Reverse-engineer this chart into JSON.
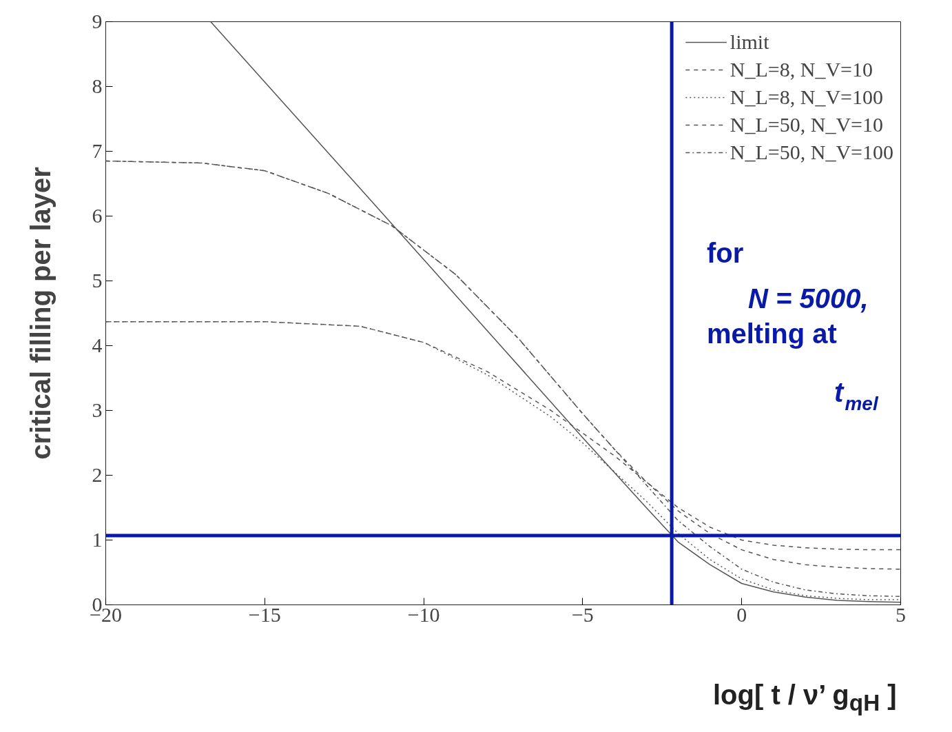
{
  "chart_data": {
    "type": "line",
    "xlabel": "log[ t / ν’ g$_{qH}$ ]",
    "ylabel": "critical filling per layer",
    "xlim": [
      -20,
      5
    ],
    "ylim": [
      0,
      9
    ],
    "xticks": [
      -20,
      -15,
      -10,
      -5,
      0,
      5
    ],
    "yticks": [
      0,
      1,
      2,
      3,
      4,
      5,
      6,
      7,
      8,
      9
    ],
    "grid": false,
    "legend": "top right",
    "series": [
      {
        "name": "limit",
        "color": "#555555",
        "line_style": "solid",
        "x": [
          -16.7,
          -15,
          -10,
          -5,
          -3,
          -2,
          -1,
          0,
          1,
          2,
          3,
          4,
          5
        ],
        "values": [
          9,
          8.07,
          5.33,
          2.58,
          1.5,
          0.97,
          0.62,
          0.33,
          0.2,
          0.12,
          0.07,
          0.05,
          0.04
        ]
      },
      {
        "name": "N_L=8, N_V=10",
        "color": "#555555",
        "line_style": "dashed",
        "x": [
          -20,
          -15,
          -12,
          -10,
          -8,
          -6,
          -5,
          -4,
          -3,
          -2,
          -1,
          0,
          1,
          2,
          3,
          4,
          5
        ],
        "values": [
          4.37,
          4.37,
          4.3,
          4.05,
          3.6,
          3.0,
          2.65,
          2.3,
          1.9,
          1.5,
          1.2,
          1.0,
          0.92,
          0.88,
          0.86,
          0.85,
          0.85
        ]
      },
      {
        "name": "N_L=8, N_V=100",
        "color": "#555555",
        "line_style": "dotted",
        "x": [
          -20,
          -15,
          -12,
          -10,
          -8,
          -6,
          -5,
          -4,
          -3,
          -2,
          -1,
          0,
          1,
          2,
          3,
          4,
          5
        ],
        "values": [
          4.37,
          4.37,
          4.3,
          4.05,
          3.55,
          2.9,
          2.5,
          2.05,
          1.6,
          1.1,
          0.7,
          0.4,
          0.23,
          0.14,
          0.1,
          0.08,
          0.08
        ]
      },
      {
        "name": "N_L=50, N_V=10",
        "color": "#555555",
        "line_style": "dashed",
        "x": [
          -20,
          -17,
          -15,
          -13,
          -11,
          -9,
          -7,
          -5,
          -4,
          -3,
          -2,
          -1,
          0,
          1,
          2,
          3,
          4,
          5
        ],
        "values": [
          6.85,
          6.82,
          6.7,
          6.35,
          5.85,
          5.1,
          4.1,
          2.95,
          2.4,
          1.9,
          1.45,
          1.1,
          0.85,
          0.7,
          0.62,
          0.58,
          0.56,
          0.55
        ]
      },
      {
        "name": "N_L=50, N_V=100",
        "color": "#555555",
        "line_style": "dashdot",
        "x": [
          -20,
          -17,
          -15,
          -13,
          -11,
          -9,
          -7,
          -5,
          -4,
          -3,
          -2,
          -1,
          0,
          1,
          2,
          3,
          4,
          5
        ],
        "values": [
          6.85,
          6.82,
          6.7,
          6.35,
          5.85,
          5.1,
          4.1,
          2.95,
          2.4,
          1.85,
          1.3,
          0.9,
          0.55,
          0.35,
          0.23,
          0.17,
          0.14,
          0.13
        ]
      }
    ],
    "ref_lines": [
      {
        "axis": "x",
        "value": -2.2,
        "color": "#0a1aa8"
      },
      {
        "axis": "y",
        "value": 1.07,
        "color": "#0a1aa8"
      }
    ],
    "annotations": [
      "for",
      "N = 5000,",
      "melting at",
      "t$_{mel}$"
    ]
  }
}
